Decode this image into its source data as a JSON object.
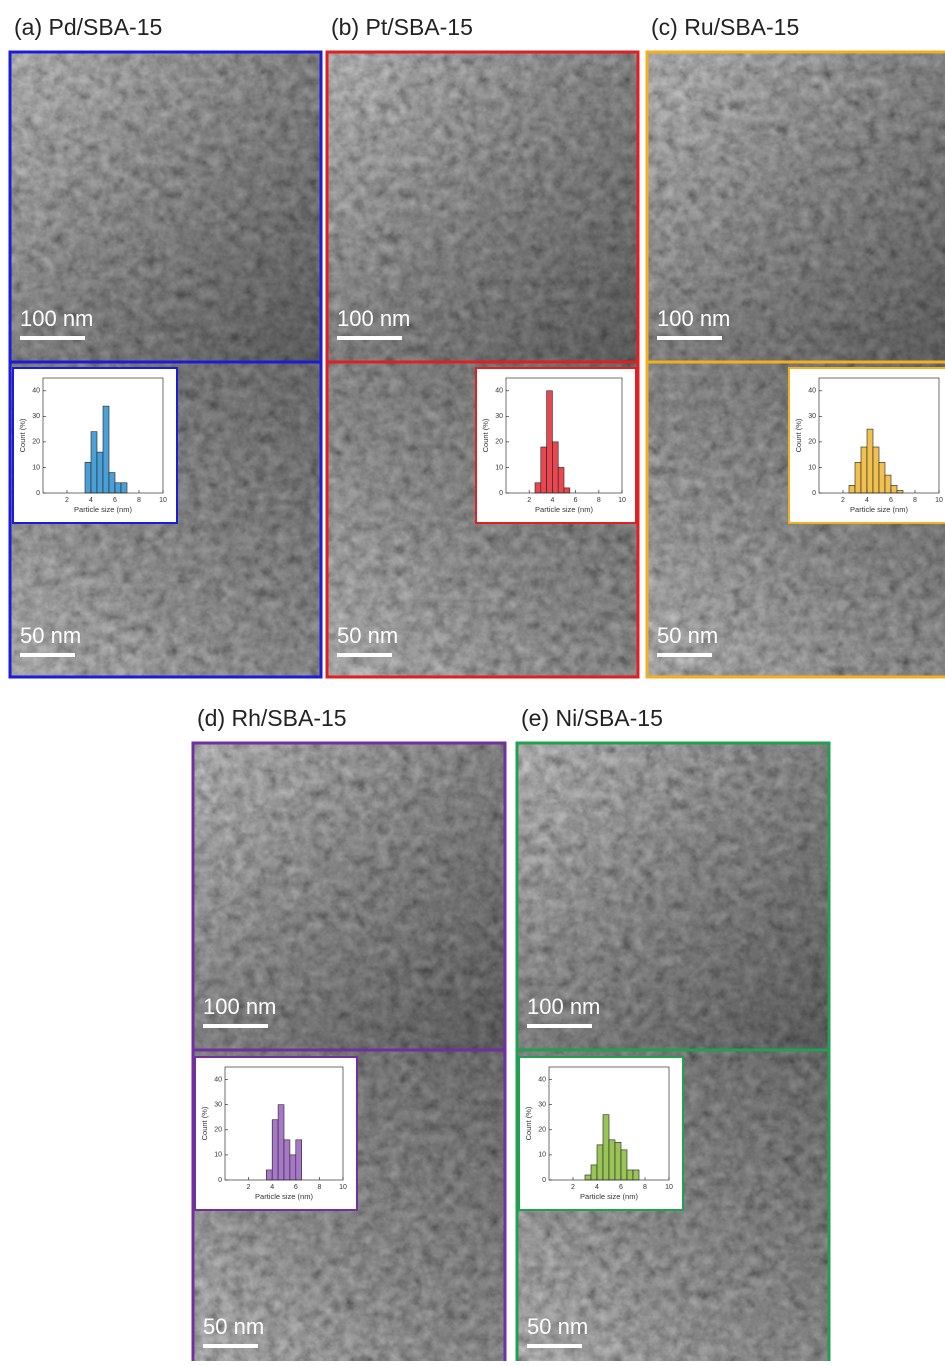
{
  "panels": [
    {
      "title": "(a) Pd/SBA-15",
      "scale_bars": [
        "100 nm",
        "50 nm"
      ]
    },
    {
      "title": "(b) Pt/SBA-15",
      "scale_bars": [
        "100 nm",
        "50 nm"
      ]
    },
    {
      "title": "(c) Ru/SBA-15",
      "scale_bars": [
        "100 nm",
        "50 nm"
      ]
    },
    {
      "title": "(d) Rh/SBA-15",
      "scale_bars": [
        "100 nm",
        "50 nm"
      ]
    },
    {
      "title": "(e) Ni/SBA-15",
      "scale_bars": [
        "100 nm",
        "50 nm"
      ]
    }
  ],
  "chart_data": [
    {
      "type": "histogram",
      "xlabel": "Particle size (nm)",
      "ylabel": "Count (%)",
      "color": "#4a9fd6",
      "frame_color": "#1c1cd8",
      "bins": [
        3.5,
        4,
        4.5,
        5,
        5.5,
        6,
        6.5,
        7
      ],
      "values": [
        12,
        24,
        16,
        34,
        8,
        4,
        4
      ],
      "xlim": [
        0,
        10
      ],
      "ylim": [
        0,
        45
      ],
      "xticks": [
        2,
        4,
        6,
        8,
        10
      ],
      "yticks": [
        0,
        10,
        20,
        30,
        40
      ]
    },
    {
      "type": "histogram",
      "xlabel": "Particle size (nm)",
      "ylabel": "Count (%)",
      "color": "#e8474f",
      "frame_color": "#e02020",
      "bins": [
        2.5,
        3,
        3.5,
        4,
        4.5,
        5,
        5.5
      ],
      "values": [
        4,
        18,
        40,
        20,
        10,
        2
      ],
      "xlim": [
        0,
        10
      ],
      "ylim": [
        0,
        45
      ],
      "xticks": [
        2,
        4,
        6,
        8,
        10
      ],
      "yticks": [
        0,
        10,
        20,
        30,
        40
      ]
    },
    {
      "type": "histogram",
      "xlabel": "Particle size (nm)",
      "ylabel": "Count (%)",
      "color": "#f0c050",
      "frame_color": "#f0b020",
      "bins": [
        2.5,
        3,
        3.5,
        4,
        4.5,
        5,
        5.5,
        6,
        6.5,
        7
      ],
      "values": [
        3,
        12,
        18,
        25,
        18,
        12,
        7,
        3,
        1
      ],
      "xlim": [
        0,
        10
      ],
      "ylim": [
        0,
        45
      ],
      "xticks": [
        2,
        4,
        6,
        8,
        10
      ],
      "yticks": [
        0,
        10,
        20,
        30,
        40
      ]
    },
    {
      "type": "histogram",
      "xlabel": "Particle size (nm)",
      "ylabel": "Count (%)",
      "color": "#a878c8",
      "frame_color": "#7030a0",
      "bins": [
        3.5,
        4,
        4.5,
        5,
        5.5,
        6,
        6.5
      ],
      "values": [
        4,
        24,
        30,
        16,
        10,
        16
      ],
      "xlim": [
        0,
        10
      ],
      "ylim": [
        0,
        45
      ],
      "xticks": [
        2,
        4,
        6,
        8,
        10
      ],
      "yticks": [
        0,
        10,
        20,
        30,
        40
      ]
    },
    {
      "type": "histogram",
      "xlabel": "Particle size (nm)",
      "ylabel": "Count (%)",
      "color": "#98c458",
      "frame_color": "#20a050",
      "bins": [
        3,
        3.5,
        4,
        4.5,
        5,
        5.5,
        6,
        6.5,
        7,
        7.5
      ],
      "values": [
        2,
        6,
        14,
        26,
        16,
        15,
        12,
        4,
        4
      ],
      "xlim": [
        0,
        10
      ],
      "ylim": [
        0,
        45
      ],
      "xticks": [
        2,
        4,
        6,
        8,
        10
      ],
      "yticks": [
        0,
        10,
        20,
        30,
        40
      ]
    }
  ]
}
